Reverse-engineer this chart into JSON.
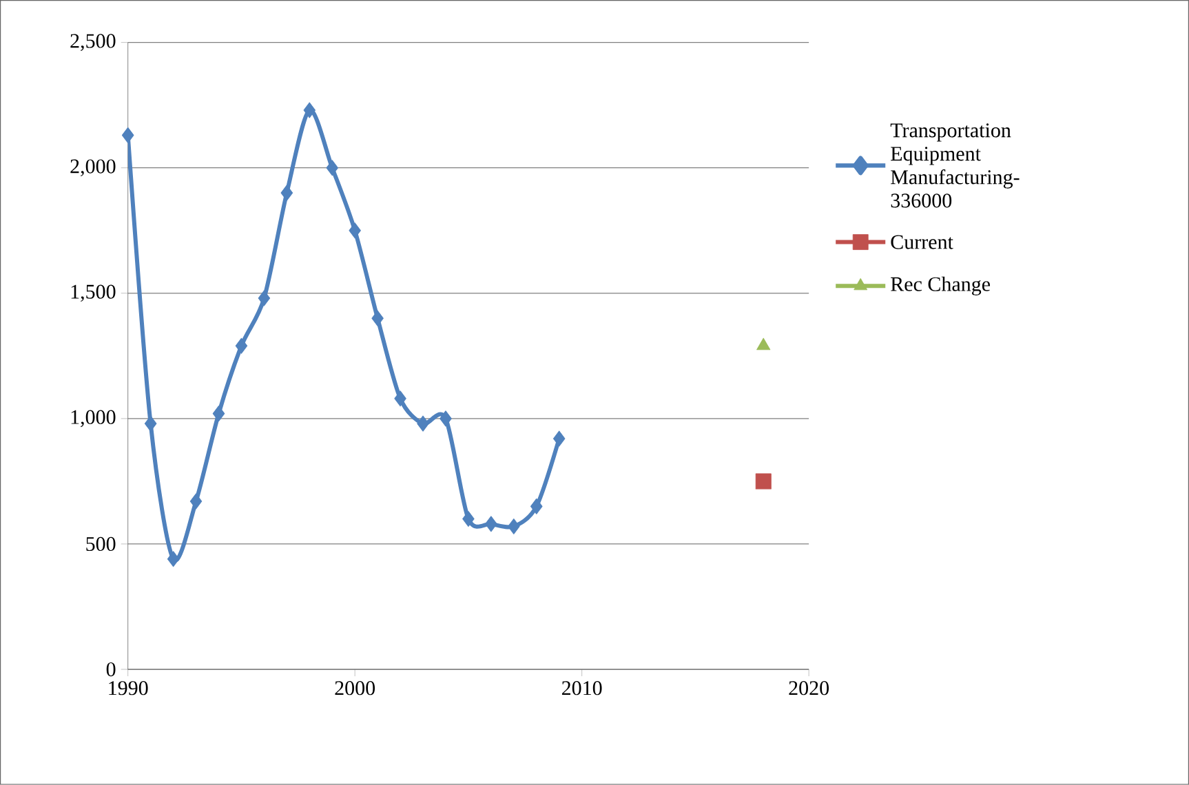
{
  "chart_data": {
    "type": "line",
    "series": [
      {
        "name": "Transportation Equipment Manufacturing-336000",
        "color": "#4f81bd",
        "marker": "diamond",
        "line_style": "solid",
        "x": [
          1990,
          1991,
          1992,
          1993,
          1994,
          1995,
          1996,
          1997,
          1998,
          1999,
          2000,
          2001,
          2002,
          2003,
          2004,
          2005,
          2006,
          2007,
          2008,
          2009
        ],
        "values": [
          2130,
          980,
          440,
          670,
          1020,
          1290,
          1480,
          1900,
          2230,
          2000,
          1750,
          1400,
          1080,
          980,
          1000,
          600,
          580,
          570,
          650,
          920
        ]
      },
      {
        "name": "Current",
        "color": "#c0504d",
        "marker": "square",
        "line_style": "none",
        "x": [
          2018
        ],
        "values": [
          750
        ]
      },
      {
        "name": "Rec Change",
        "color": "#9bbb59",
        "marker": "triangle",
        "line_style": "none",
        "x": [
          2018
        ],
        "values": [
          1290
        ]
      }
    ],
    "xlim": [
      1990,
      2020
    ],
    "xticks": [
      1990,
      2000,
      2010,
      2020
    ],
    "ylim": [
      0,
      2500
    ],
    "yticks": [
      {
        "value": 0,
        "label": "0"
      },
      {
        "value": 500,
        "label": "500"
      },
      {
        "value": 1000,
        "label": "1,000"
      },
      {
        "value": 1500,
        "label": "1,500"
      },
      {
        "value": 2000,
        "label": "2,000"
      },
      {
        "value": 2500,
        "label": "2,500"
      }
    ],
    "grid": "y",
    "legend": "right"
  }
}
